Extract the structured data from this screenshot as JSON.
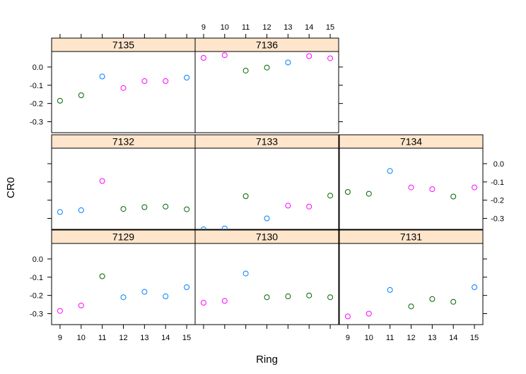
{
  "chart_data": {
    "type": "scatter",
    "xlabel": "Ring",
    "ylabel": "CR0",
    "x": [
      9,
      10,
      11,
      12,
      13,
      14,
      15
    ],
    "xlim": [
      8.6,
      15.4
    ],
    "ylim": [
      -0.36,
      0.085
    ],
    "yticks": [
      0.0,
      -0.1,
      -0.2,
      -0.3
    ],
    "x_tick_labels": [
      "9",
      "10",
      "11",
      "12",
      "13",
      "14",
      "15"
    ],
    "y_tick_labels": [
      "0.0",
      "-0.1",
      "-0.2",
      "-0.3"
    ],
    "layout_cols": 3,
    "layout_rows": 3,
    "colors": {
      "blue": "#0080ff",
      "magenta": "#ff00ff",
      "green": "#006400",
      "strip_fill": "#ffe5cc",
      "axis": "#000000"
    },
    "panels": [
      {
        "label": "7135",
        "y": [
          -0.185,
          -0.155,
          -0.052,
          -0.115,
          -0.077,
          -0.077,
          -0.058
        ],
        "colors": [
          "green",
          "green",
          "blue",
          "magenta",
          "magenta",
          "magenta",
          "blue"
        ]
      },
      {
        "label": "7136",
        "y": [
          0.05,
          0.065,
          -0.02,
          -0.003,
          0.025,
          0.06,
          0.048
        ],
        "colors": [
          "magenta",
          "magenta",
          "green",
          "green",
          "blue",
          "magenta",
          "magenta"
        ]
      },
      {
        "label": "7132",
        "y": [
          -0.265,
          -0.255,
          -0.095,
          -0.248,
          -0.238,
          -0.235,
          -0.25
        ],
        "colors": [
          "blue",
          "blue",
          "magenta",
          "green",
          "green",
          "green",
          "green"
        ]
      },
      {
        "label": "7133",
        "y": [
          -0.36,
          -0.355,
          -0.178,
          -0.3,
          -0.23,
          -0.235,
          -0.175
        ],
        "colors": [
          "blue",
          "blue",
          "green",
          "blue",
          "magenta",
          "magenta",
          "green"
        ]
      },
      {
        "label": "7134",
        "y": [
          -0.155,
          -0.165,
          -0.04,
          -0.13,
          -0.14,
          -0.18,
          -0.13
        ],
        "colors": [
          "green",
          "green",
          "blue",
          "magenta",
          "magenta",
          "green",
          "magenta"
        ]
      },
      {
        "label": "7129",
        "y": [
          -0.285,
          -0.255,
          -0.095,
          -0.21,
          -0.18,
          -0.205,
          -0.155
        ],
        "colors": [
          "magenta",
          "magenta",
          "green",
          "blue",
          "blue",
          "blue",
          "blue"
        ]
      },
      {
        "label": "7130",
        "y": [
          -0.24,
          -0.23,
          -0.08,
          -0.21,
          -0.205,
          -0.2,
          -0.21
        ],
        "colors": [
          "magenta",
          "magenta",
          "blue",
          "green",
          "green",
          "green",
          "green"
        ]
      },
      {
        "label": "7131",
        "y": [
          -0.315,
          -0.3,
          -0.17,
          -0.26,
          -0.22,
          -0.235,
          -0.155
        ],
        "colors": [
          "magenta",
          "magenta",
          "blue",
          "green",
          "green",
          "green",
          "blue"
        ]
      }
    ]
  }
}
